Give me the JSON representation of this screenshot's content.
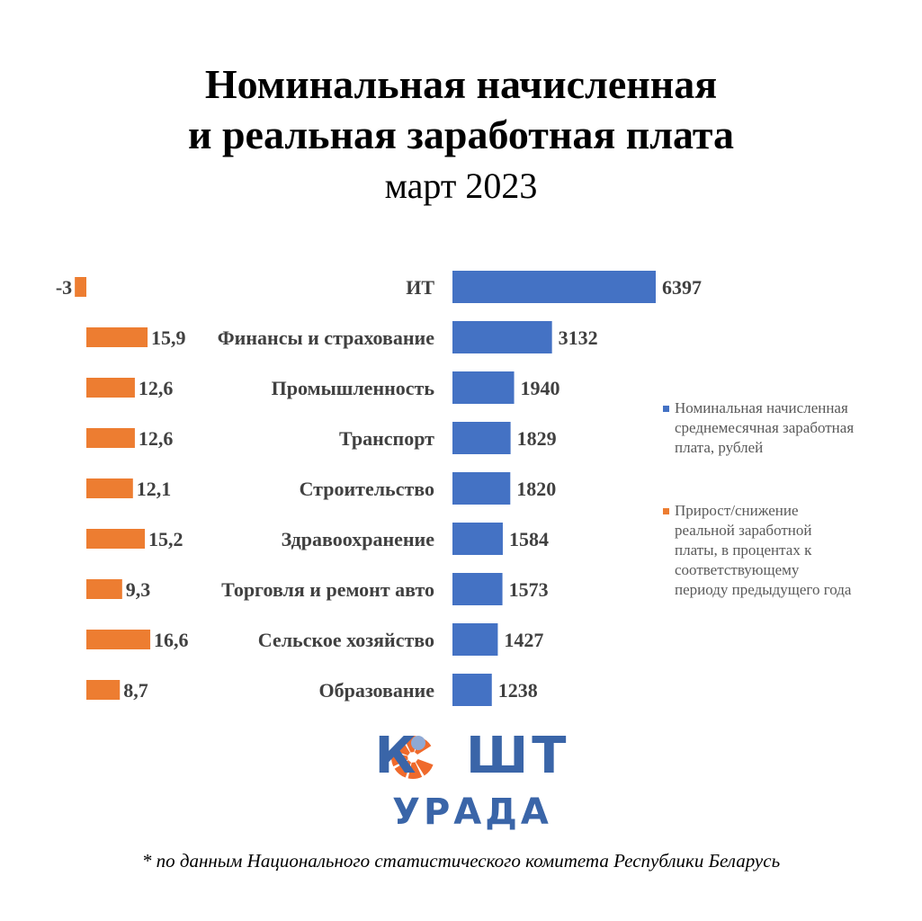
{
  "title_line1": "Номинальная начисленная",
  "title_line2": "и реальная заработная плата",
  "subtitle": "март 2023",
  "chart_data": {
    "type": "bar",
    "orientation": "horizontal",
    "categories": [
      "ИТ",
      "Финансы и страхование",
      "Промышленность",
      "Транспорт",
      "Строительство",
      "Здравоохранение",
      "Торговля и ремонт авто",
      "Сельское хозяйство",
      "Образование"
    ],
    "series": [
      {
        "name": "Номинальная начисленная среднемесячная заработная плата, рублей",
        "color": "#4472c4",
        "values": [
          6397,
          3132,
          1940,
          1829,
          1820,
          1584,
          1573,
          1427,
          1238
        ],
        "labels": [
          "6397",
          "3132",
          "1940",
          "1829",
          "1820",
          "1584",
          "1573",
          "1427",
          "1238"
        ]
      },
      {
        "name": "Прирост/снижение реальной заработной платы, в процентах к соответствующему периоду предыдущего года",
        "color": "#ed7d31",
        "values": [
          -3,
          15.9,
          12.6,
          12.6,
          12.1,
          15.2,
          9.3,
          16.6,
          8.7
        ],
        "labels": [
          "-3",
          "15,9",
          "12,6",
          "12,6",
          "12,1",
          "15,2",
          "9,3",
          "16,6",
          "8,7"
        ]
      }
    ],
    "legend": "right"
  },
  "legend": {
    "item1": "Номинальная начисленная среднемесячная заработная плата, рублей",
    "item2": "Прирост/снижение реальной заработной платы, в процентах к соответствующему периоду предыдущего года"
  },
  "logo": {
    "line1": "КОШТ",
    "line2": "УРАДА"
  },
  "footer": "* по данным Национального статистического комитета Республики Беларусь"
}
